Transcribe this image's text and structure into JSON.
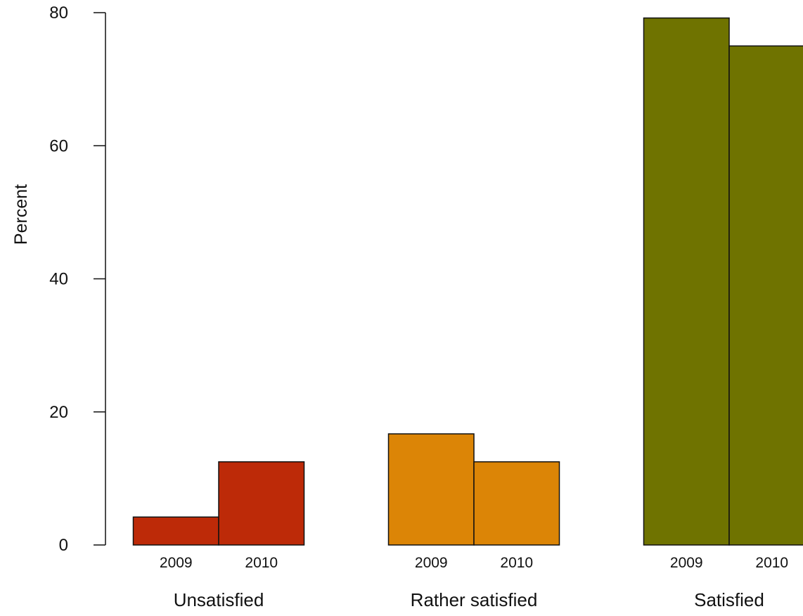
{
  "chart_data": {
    "type": "bar",
    "title": "",
    "xlabel": "",
    "ylabel": "Percent",
    "ylim": [
      0,
      80
    ],
    "yticks": [
      0,
      20,
      40,
      60,
      80
    ],
    "grid": false,
    "legend": "none",
    "groups": [
      {
        "label": "Unsatisfied",
        "color": "#bd2a08",
        "bars": [
          {
            "year": "2009",
            "value": 4.2
          },
          {
            "year": "2010",
            "value": 12.5
          }
        ]
      },
      {
        "label": "Rather satisfied",
        "color": "#dc8506",
        "bars": [
          {
            "year": "2009",
            "value": 16.7
          },
          {
            "year": "2010",
            "value": 12.5
          }
        ]
      },
      {
        "label": "Satisfied",
        "color": "#6f7300",
        "bars": [
          {
            "year": "2009",
            "value": 79.2
          },
          {
            "year": "2010",
            "value": 75.0
          }
        ]
      }
    ]
  }
}
